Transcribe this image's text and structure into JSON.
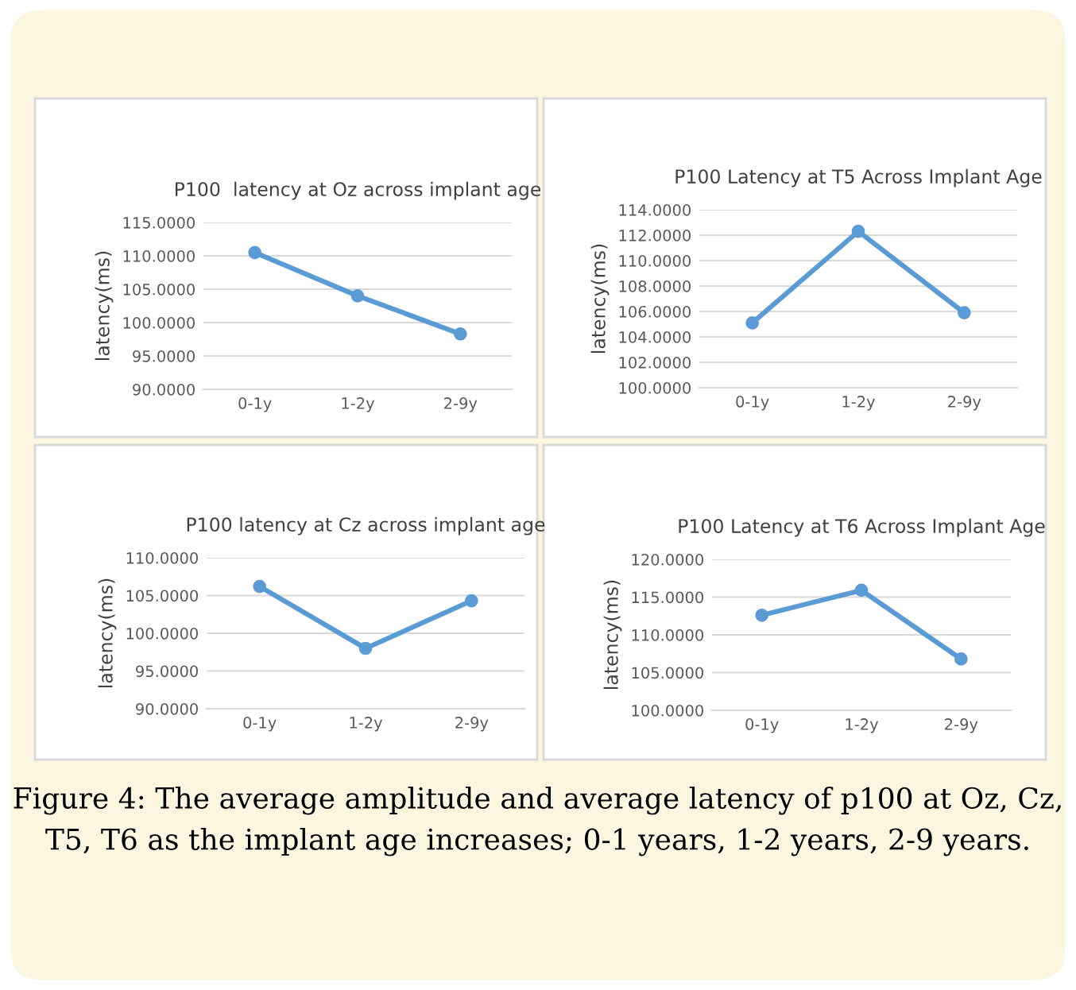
{
  "chart_data": [
    {
      "type": "line",
      "title": "P100  latency at Oz across implant age",
      "ylabel": "latency(ms)",
      "categories": [
        "0-1y",
        "1-2y",
        "2-9y"
      ],
      "series": [
        {
          "color": "#5b9bd5",
          "values": [
            110.5,
            104.0,
            98.3
          ]
        }
      ],
      "ylim": [
        90,
        115
      ],
      "yticks": [
        {
          "value": 90,
          "label": "90.0000"
        },
        {
          "value": 95,
          "label": "95.0000"
        },
        {
          "value": 100,
          "label": "100.0000"
        },
        {
          "value": 105,
          "label": "105.0000"
        },
        {
          "value": 110,
          "label": "110.0000"
        },
        {
          "value": 115,
          "label": "115.0000"
        }
      ],
      "grid": "y",
      "marker": "circle",
      "line_style": "solid"
    },
    {
      "type": "line",
      "title": "P100 Latency at T5 Across Implant Age",
      "ylabel": "latency(ms)",
      "categories": [
        "0-1y",
        "1-2y",
        "2-9y"
      ],
      "series": [
        {
          "color": "#5b9bd5",
          "values": [
            105.1,
            112.3,
            105.9
          ]
        }
      ],
      "ylim": [
        100,
        114
      ],
      "yticks": [
        {
          "value": 100,
          "label": "100.0000"
        },
        {
          "value": 102,
          "label": "102.0000"
        },
        {
          "value": 104,
          "label": "104.0000"
        },
        {
          "value": 106,
          "label": "106.0000"
        },
        {
          "value": 108,
          "label": "108.0000"
        },
        {
          "value": 110,
          "label": "110.0000"
        },
        {
          "value": 112,
          "label": "112.0000"
        },
        {
          "value": 114,
          "label": "114.0000"
        }
      ],
      "grid": "y",
      "marker": "circle",
      "line_style": "solid"
    },
    {
      "type": "line",
      "title": "P100 latency at Cz across implant age",
      "ylabel": "latency(ms)",
      "categories": [
        "0-1y",
        "1-2y",
        "2-9y"
      ],
      "series": [
        {
          "color": "#5b9bd5",
          "values": [
            106.2,
            98.0,
            104.3
          ]
        }
      ],
      "ylim": [
        90,
        110
      ],
      "yticks": [
        {
          "value": 90,
          "label": "90.0000"
        },
        {
          "value": 95,
          "label": "95.0000"
        },
        {
          "value": 100,
          "label": "100.0000"
        },
        {
          "value": 105,
          "label": "105.0000"
        },
        {
          "value": 110,
          "label": "110.0000"
        }
      ],
      "grid": "y",
      "marker": "circle",
      "line_style": "solid"
    },
    {
      "type": "line",
      "title": "P100 Latency at T6 Across Implant Age",
      "ylabel": "latency(ms)",
      "categories": [
        "0-1y",
        "1-2y",
        "2-9y"
      ],
      "series": [
        {
          "color": "#5b9bd5",
          "values": [
            112.6,
            115.9,
            106.8
          ]
        }
      ],
      "ylim": [
        100,
        120
      ],
      "yticks": [
        {
          "value": 100,
          "label": "100.0000"
        },
        {
          "value": 105,
          "label": "105.0000"
        },
        {
          "value": 110,
          "label": "110.0000"
        },
        {
          "value": 115,
          "label": "115.0000"
        },
        {
          "value": 120,
          "label": "120.0000"
        }
      ],
      "grid": "y",
      "marker": "circle",
      "line_style": "solid",
      "annotations": [
        "Figure 4: The average amplitude and average latency of p100 at Oz, Cz, T5, T6 as the implant age increases; 0-1 years, 1-2 years, 2-9 years."
      ]
    }
  ]
}
